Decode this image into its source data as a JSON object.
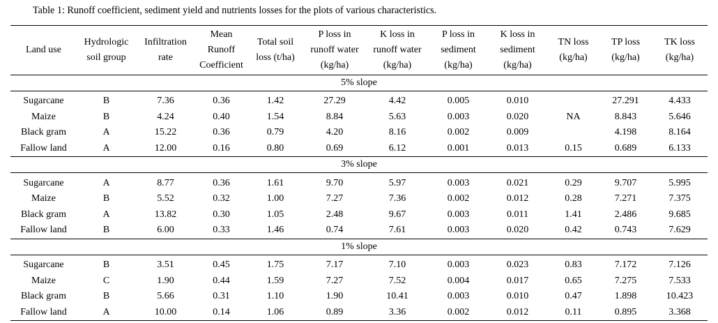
{
  "caption": "Table 1: Runoff coefficient, sediment yield and nutrients losses for the plots of various characteristics.",
  "headers": [
    [
      "Land use"
    ],
    [
      "Hydrologic",
      "soil group"
    ],
    [
      "Infiltration",
      "rate"
    ],
    [
      "Mean",
      "Runoff",
      "Coefficient"
    ],
    [
      "Total soil",
      "loss (t/ha)"
    ],
    [
      "P loss in",
      "runoff water",
      "(kg/ha)"
    ],
    [
      "K loss in",
      "runoff water",
      "(kg/ha)"
    ],
    [
      "P loss in",
      "sediment",
      "(kg/ha)"
    ],
    [
      "K loss in",
      "sediment",
      "(kg/ha)"
    ],
    [
      "TN loss",
      "(kg/ha)"
    ],
    [
      "TP loss",
      "(kg/ha)"
    ],
    [
      "TK loss",
      "(kg/ha)"
    ]
  ],
  "sections": [
    {
      "title": "5% slope",
      "rows": [
        [
          "Sugarcane",
          "B",
          "7.36",
          "0.36",
          "1.42",
          "27.29",
          "4.42",
          "0.005",
          "0.010",
          "",
          "27.291",
          "4.433"
        ],
        [
          "Maize",
          "B",
          "4.24",
          "0.40",
          "1.54",
          "8.84",
          "5.63",
          "0.003",
          "0.020",
          "",
          "8.843",
          "5.646"
        ],
        [
          "Black gram",
          "A",
          "15.22",
          "0.36",
          "0.79",
          "4.20",
          "8.16",
          "0.002",
          "0.009",
          "",
          "4.198",
          "8.164"
        ],
        [
          "Fallow land",
          "A",
          "12.00",
          "0.16",
          "0.80",
          "0.69",
          "6.12",
          "0.001",
          "0.013",
          "0.15",
          "0.689",
          "6.133"
        ]
      ],
      "merged_tn": "NA"
    },
    {
      "title": "3% slope",
      "rows": [
        [
          "Sugarcane",
          "A",
          "8.77",
          "0.36",
          "1.61",
          "9.70",
          "5.97",
          "0.003",
          "0.021",
          "0.29",
          "9.707",
          "5.995"
        ],
        [
          "Maize",
          "B",
          "5.52",
          "0.32",
          "1.00",
          "7.27",
          "7.36",
          "0.002",
          "0.012",
          "0.28",
          "7.271",
          "7.375"
        ],
        [
          "Black gram",
          "A",
          "13.82",
          "0.30",
          "1.05",
          "2.48",
          "9.67",
          "0.003",
          "0.011",
          "1.41",
          "2.486",
          "9.685"
        ],
        [
          "Fallow land",
          "B",
          "6.00",
          "0.33",
          "1.46",
          "0.74",
          "7.61",
          "0.003",
          "0.020",
          "0.42",
          "0.743",
          "7.629"
        ]
      ]
    },
    {
      "title": "1% slope",
      "rows": [
        [
          "Sugarcane",
          "B",
          "3.51",
          "0.45",
          "1.75",
          "7.17",
          "7.10",
          "0.003",
          "0.023",
          "0.83",
          "7.172",
          "7.126"
        ],
        [
          "Maize",
          "C",
          "1.90",
          "0.44",
          "1.59",
          "7.27",
          "7.52",
          "0.004",
          "0.017",
          "0.65",
          "7.275",
          "7.533"
        ],
        [
          "Black gram",
          "B",
          "5.66",
          "0.31",
          "1.10",
          "1.90",
          "10.41",
          "0.003",
          "0.010",
          "0.47",
          "1.898",
          "10.423"
        ],
        [
          "Fallow land",
          "A",
          "10.00",
          "0.14",
          "1.06",
          "0.89",
          "3.36",
          "0.002",
          "0.012",
          "0.11",
          "0.895",
          "3.368"
        ]
      ]
    }
  ]
}
